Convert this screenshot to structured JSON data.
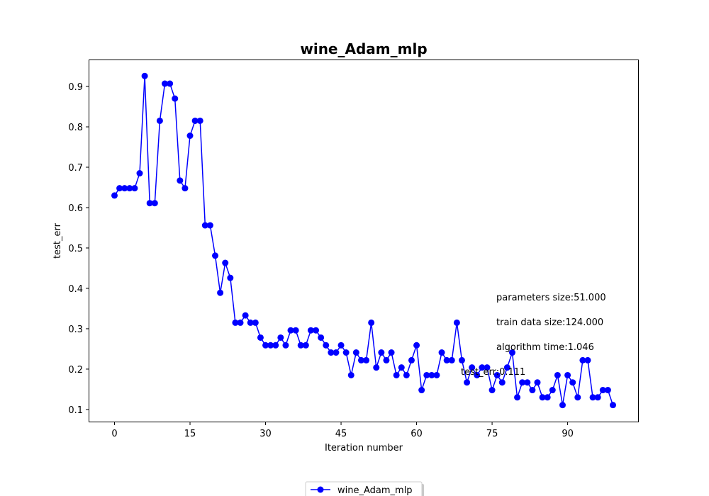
{
  "chart_data": {
    "type": "line",
    "title": "wine_Adam_mlp",
    "xlabel": "Iteration number",
    "ylabel": "test_err",
    "xlim": [
      -5,
      104
    ],
    "ylim": [
      0.07,
      0.965
    ],
    "xticks": [
      0,
      15,
      30,
      45,
      60,
      75,
      90
    ],
    "yticks": [
      0.1,
      0.2,
      0.3,
      0.4,
      0.5,
      0.6,
      0.7,
      0.8,
      0.9
    ],
    "grid": false,
    "legend_position": "bottom-center",
    "series": [
      {
        "name": "wine_Adam_mlp",
        "color": "#0000ff",
        "marker": "circle",
        "x": [
          0,
          1,
          2,
          3,
          4,
          5,
          6,
          7,
          8,
          9,
          10,
          11,
          12,
          13,
          14,
          15,
          16,
          17,
          18,
          19,
          20,
          21,
          22,
          23,
          24,
          25,
          26,
          27,
          28,
          29,
          30,
          31,
          32,
          33,
          34,
          35,
          36,
          37,
          38,
          39,
          40,
          41,
          42,
          43,
          44,
          45,
          46,
          47,
          48,
          49,
          50,
          51,
          52,
          53,
          54,
          55,
          56,
          57,
          58,
          59,
          60,
          61,
          62,
          63,
          64,
          65,
          66,
          67,
          68,
          69,
          70,
          71,
          72,
          73,
          74,
          75,
          76,
          77,
          78,
          79,
          80,
          81,
          82,
          83,
          84,
          85,
          86,
          87,
          88,
          89,
          90,
          91,
          92,
          93,
          94,
          95,
          96,
          97,
          98,
          99
        ],
        "values": [
          0.63,
          0.648,
          0.648,
          0.648,
          0.648,
          0.685,
          0.926,
          0.611,
          0.611,
          0.815,
          0.907,
          0.907,
          0.87,
          0.667,
          0.648,
          0.778,
          0.815,
          0.815,
          0.556,
          0.556,
          0.481,
          0.389,
          0.463,
          0.426,
          0.315,
          0.315,
          0.333,
          0.315,
          0.315,
          0.278,
          0.259,
          0.259,
          0.259,
          0.278,
          0.259,
          0.296,
          0.296,
          0.259,
          0.259,
          0.296,
          0.296,
          0.278,
          0.259,
          0.241,
          0.241,
          0.259,
          0.241,
          0.185,
          0.241,
          0.222,
          0.222,
          0.315,
          0.204,
          0.241,
          0.222,
          0.241,
          0.185,
          0.204,
          0.185,
          0.222,
          0.259,
          0.148,
          0.185,
          0.185,
          0.185,
          0.241,
          0.222,
          0.222,
          0.315,
          0.222,
          0.167,
          0.204,
          0.185,
          0.204,
          0.204,
          0.148,
          0.185,
          0.167,
          0.204,
          0.241,
          0.13,
          0.167,
          0.167,
          0.148,
          0.167,
          0.13,
          0.13,
          0.148,
          0.185,
          0.111,
          0.185,
          0.167,
          0.13,
          0.222,
          0.222,
          0.13,
          0.13,
          0.148,
          0.148,
          0.111
        ]
      }
    ],
    "annotations": [
      "parameters size:51.000",
      "train data size:124.000",
      "algorithm time:1.046",
      "test_err:0.111"
    ]
  }
}
